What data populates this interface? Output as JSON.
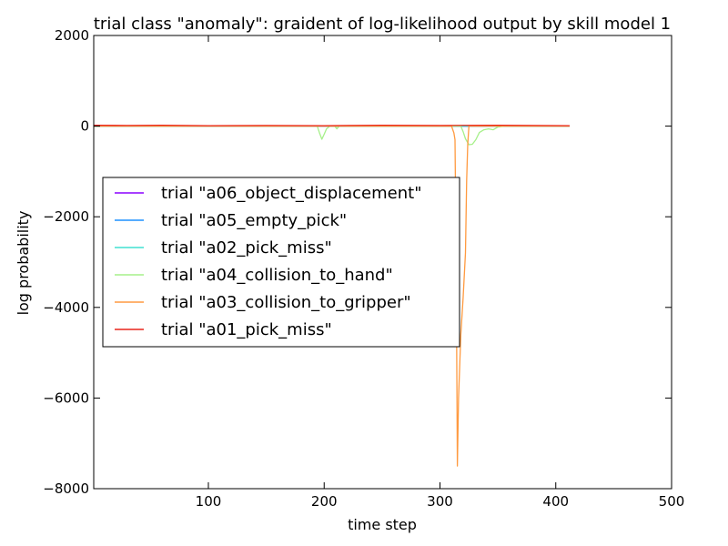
{
  "chart_data": {
    "type": "line",
    "title": "trial class \"anomaly\": graident of log-likelihood output by skill model 1",
    "xlabel": "time step",
    "ylabel": "log probability",
    "xlim": [
      1,
      500
    ],
    "ylim": [
      -8000,
      2000
    ],
    "xticks": [
      100,
      200,
      300,
      400,
      500
    ],
    "xtick_labels": [
      "100",
      "200",
      "300",
      "400",
      "500"
    ],
    "yticks": [
      2000,
      0,
      -2000,
      -4000,
      -6000,
      -8000
    ],
    "ytick_labels": [
      "2000",
      "0",
      "−2000",
      "−4000",
      "−6000",
      "−8000"
    ],
    "grid": false,
    "legend_position": "center-left",
    "series": [
      {
        "name": "trial \"a06_object_displacement\"",
        "color": "#8b00ff",
        "points": [
          [
            1,
            0
          ],
          [
            100,
            0
          ],
          [
            200,
            0
          ],
          [
            300,
            0
          ],
          [
            412,
            0
          ]
        ]
      },
      {
        "name": "trial \"a05_empty_pick\"",
        "color": "#1e90ff",
        "points": [
          [
            1,
            0
          ],
          [
            100,
            0
          ],
          [
            200,
            0
          ],
          [
            300,
            0
          ],
          [
            412,
            0
          ]
        ]
      },
      {
        "name": "trial \"a02_pick_miss\"",
        "color": "#40e0d0",
        "points": [
          [
            1,
            0
          ],
          [
            100,
            0
          ],
          [
            200,
            0
          ],
          [
            300,
            0
          ],
          [
            412,
            0
          ]
        ]
      },
      {
        "name": "trial \"a04_collision_to_hand\"",
        "color": "#a6f08a",
        "points": [
          [
            1,
            0
          ],
          [
            194,
            0
          ],
          [
            196,
            -150
          ],
          [
            198,
            -290
          ],
          [
            200,
            -180
          ],
          [
            202,
            -60
          ],
          [
            205,
            0
          ],
          [
            209,
            0
          ],
          [
            211,
            -60
          ],
          [
            213,
            0
          ],
          [
            300,
            0
          ],
          [
            318,
            0
          ],
          [
            320,
            -120
          ],
          [
            322,
            -280
          ],
          [
            325,
            -410
          ],
          [
            328,
            -400
          ],
          [
            331,
            -300
          ],
          [
            334,
            -140
          ],
          [
            338,
            -80
          ],
          [
            342,
            -60
          ],
          [
            346,
            -80
          ],
          [
            350,
            -20
          ],
          [
            355,
            0
          ],
          [
            412,
            0
          ]
        ]
      },
      {
        "name": "trial \"a03_collision_to_gripper\"",
        "color": "#ff9a40",
        "points": [
          [
            1,
            0
          ],
          [
            310,
            0
          ],
          [
            312,
            -150
          ],
          [
            313,
            -300
          ],
          [
            314,
            -3000
          ],
          [
            315,
            -7500
          ],
          [
            316,
            -6000
          ],
          [
            318,
            -4600
          ],
          [
            320,
            -3800
          ],
          [
            322,
            -2800
          ],
          [
            323,
            -1200
          ],
          [
            324,
            -400
          ],
          [
            325,
            0
          ],
          [
            412,
            0
          ]
        ]
      },
      {
        "name": "trial \"a01_pick_miss\"",
        "color": "#e8251c",
        "points": [
          [
            1,
            20
          ],
          [
            30,
            15
          ],
          [
            60,
            20
          ],
          [
            100,
            10
          ],
          [
            150,
            15
          ],
          [
            200,
            10
          ],
          [
            250,
            20
          ],
          [
            300,
            15
          ],
          [
            350,
            20
          ],
          [
            412,
            10
          ]
        ]
      }
    ]
  }
}
